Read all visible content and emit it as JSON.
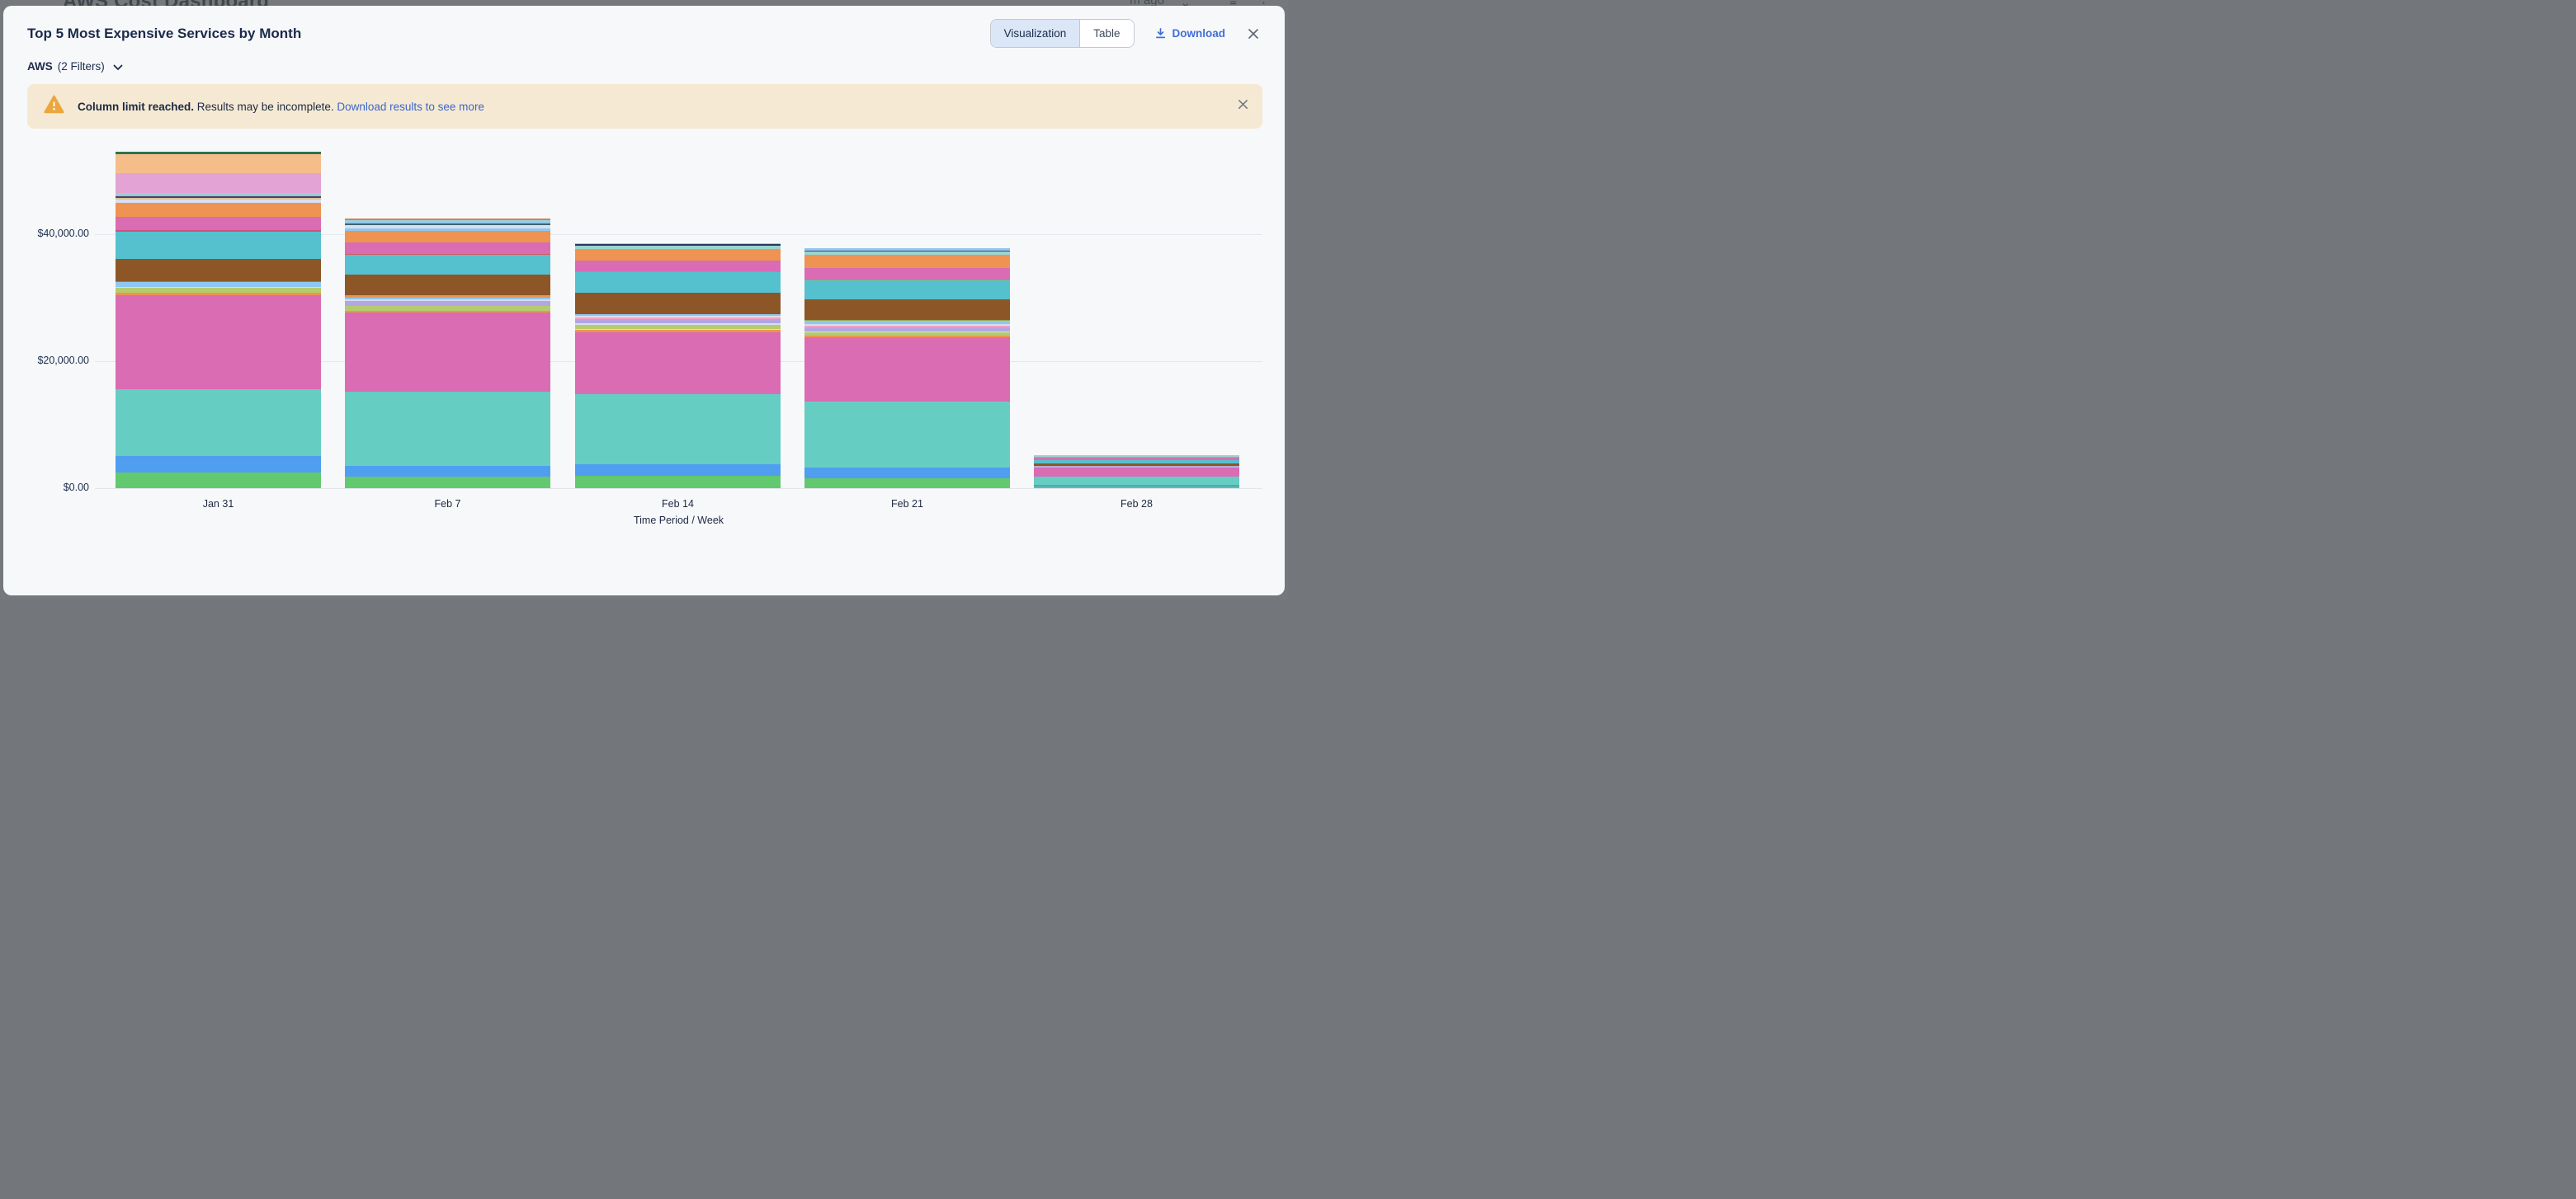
{
  "backdrop": {
    "page_title": "AWS Cost Dashboard",
    "toolbar_fragment": "m ago"
  },
  "header": {
    "title": "Top 5 Most Expensive Services by Month",
    "view_toggle": {
      "options": [
        "Visualization",
        "Table"
      ],
      "selected": "Visualization"
    },
    "download_label": "Download"
  },
  "filter": {
    "source": "AWS",
    "filters_label": "(2 Filters)"
  },
  "banner": {
    "bold": "Column limit reached.",
    "text": " Results may be incomplete. ",
    "link": "Download results to see more"
  },
  "chart_data": {
    "type": "bar",
    "stacked": true,
    "title": "Top 5 Most Expensive Services by Month",
    "xlabel": "Time Period / Week",
    "ylabel": "",
    "ylim": [
      0,
      45000
    ],
    "grid": true,
    "legend": "none",
    "y_ticks": [
      {
        "label": "$0.00",
        "value": 0
      },
      {
        "label": "$20,000.00",
        "value": 20000
      },
      {
        "label": "$40,000.00",
        "value": 40000
      }
    ],
    "categories": [
      "Jan 31",
      "Feb 7",
      "Feb 14",
      "Feb 21",
      "Feb 28"
    ],
    "totals_approx_usd": [
      52910,
      42390,
      38560,
      37800,
      5150
    ],
    "bars": [
      {
        "category": "Jan 31",
        "segments": [
          [
            "#63c96e",
            2500
          ],
          [
            "#4f9ef0",
            2500
          ],
          [
            "#66cdc3",
            10500
          ],
          [
            "#d96cb3",
            14840
          ],
          [
            "#ee9351",
            350
          ],
          [
            "#b5cc6e",
            840
          ],
          [
            "#d9def0",
            130
          ],
          [
            "#8ec7f2",
            710
          ],
          [
            "#cf5f62",
            160
          ],
          [
            "#8d5627",
            3500
          ],
          [
            "#56c1ce",
            4340
          ],
          [
            "#c9537f",
            250
          ],
          [
            "#d96cb3",
            2070
          ],
          [
            "#ee9351",
            2200
          ],
          [
            "#d9def0",
            450
          ],
          [
            "#d6c493",
            350
          ],
          [
            "#5c3e5c",
            260
          ],
          [
            "#8ec7f2",
            200
          ],
          [
            "#9ad4cd",
            320
          ],
          [
            "#e3a3d5",
            3050
          ],
          [
            "#f5bd8a",
            2980
          ],
          [
            "#2d7550",
            390
          ]
        ]
      },
      {
        "category": "Feb 7",
        "segments": [
          [
            "#63c96e",
            1800
          ],
          [
            "#4f9ef0",
            1750
          ],
          [
            "#66cdc3",
            11600
          ],
          [
            "#d96cb3",
            12450
          ],
          [
            "#ee9351",
            325
          ],
          [
            "#b5cc6e",
            780
          ],
          [
            "#b3a6e3",
            715
          ],
          [
            "#d9def0",
            260
          ],
          [
            "#8ec7f2",
            325
          ],
          [
            "#ee9351",
            325
          ],
          [
            "#8d5627",
            3300
          ],
          [
            "#56c1ce",
            3050
          ],
          [
            "#cf5f62",
            195
          ],
          [
            "#d96cb3",
            1815
          ],
          [
            "#ee9351",
            1750
          ],
          [
            "#8ec7f2",
            455
          ],
          [
            "#d9def0",
            520
          ],
          [
            "#3c6470",
            195
          ],
          [
            "#8ec7f2",
            260
          ],
          [
            "#9ad4cd",
            325
          ],
          [
            "#dd7a63",
            195
          ]
        ]
      },
      {
        "category": "Feb 14",
        "segments": [
          [
            "#63c96e",
            1950
          ],
          [
            "#4f9ef0",
            1820
          ],
          [
            "#66cdc3",
            11000
          ],
          [
            "#d96cb3",
            9800
          ],
          [
            "#ee9351",
            325
          ],
          [
            "#d9def0",
            195
          ],
          [
            "#b5cc6e",
            650
          ],
          [
            "#d9def0",
            195
          ],
          [
            "#b3a6e3",
            715
          ],
          [
            "#f2a3c5",
            160
          ],
          [
            "#d9def0",
            260
          ],
          [
            "#8ec7f2",
            325
          ],
          [
            "#8d5627",
            3380
          ],
          [
            "#56c1ce",
            3180
          ],
          [
            "#97a84f",
            130
          ],
          [
            "#d96cb3",
            1750
          ],
          [
            "#ee9351",
            1750
          ],
          [
            "#9ad4cd",
            520
          ],
          [
            "#2b3a5e",
            260
          ],
          [
            "#f2a3c5",
            195
          ]
        ]
      },
      {
        "category": "Feb 21",
        "segments": [
          [
            "#63c96e",
            1550
          ],
          [
            "#4f9ef0",
            1680
          ],
          [
            "#66cdc3",
            10400
          ],
          [
            "#d96cb3",
            10100
          ],
          [
            "#ee9351",
            325
          ],
          [
            "#b5cc6e",
            455
          ],
          [
            "#d9def0",
            195
          ],
          [
            "#b3a6e3",
            585
          ],
          [
            "#f2a3c5",
            325
          ],
          [
            "#d9def0",
            260
          ],
          [
            "#8ec7f2",
            455
          ],
          [
            "#97a84f",
            195
          ],
          [
            "#8d5627",
            3180
          ],
          [
            "#56c1ce",
            2980
          ],
          [
            "#97a84f",
            195
          ],
          [
            "#d96cb3",
            1815
          ],
          [
            "#ee9351",
            2070
          ],
          [
            "#9ad4cd",
            455
          ],
          [
            "#5c3e5c",
            195
          ],
          [
            "#8ec7f2",
            390
          ]
        ]
      },
      {
        "category": "Feb 28",
        "segments": [
          [
            "#63c96e",
            200
          ],
          [
            "#4f9ef0",
            260
          ],
          [
            "#66cdc3",
            1300
          ],
          [
            "#d96cb3",
            1430
          ],
          [
            "#b5cc6e",
            130
          ],
          [
            "#b3a6e3",
            200
          ],
          [
            "#8d5627",
            325
          ],
          [
            "#56c1ce",
            580
          ],
          [
            "#d96cb3",
            325
          ],
          [
            "#ee9351",
            200
          ],
          [
            "#9ad4cd",
            200
          ]
        ]
      }
    ]
  }
}
